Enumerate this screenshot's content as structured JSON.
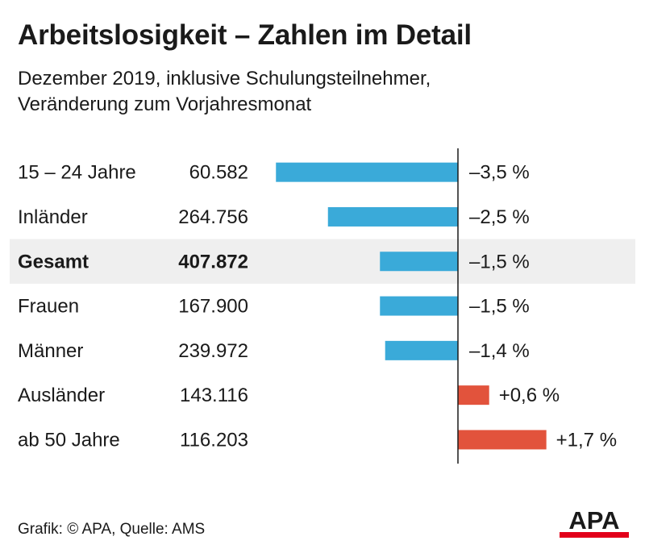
{
  "title": "Arbeitslosigkeit – Zahlen im Detail",
  "subtitle": [
    "Dezember 2019, inklusive Schulungsteilnehmer,",
    "Veränderung zum Vorjahresmonat"
  ],
  "footer": "Grafik: © APA, Quelle: AMS",
  "logo": "APA",
  "colors": {
    "negative": "#3aaad9",
    "positive": "#e2533c",
    "highlight_row": "#efefef",
    "axis": "#1a1a1a",
    "logo_red": "#e2001a"
  },
  "chart_data": {
    "type": "bar",
    "orientation": "horizontal",
    "unit": "%",
    "highlight_category": "Gesamt",
    "categories": [
      "15 – 24 Jahre",
      "Inländer",
      "Gesamt",
      "Frauen",
      "Männer",
      "Ausländer",
      "ab 50 Jahre"
    ],
    "counts": [
      "60.582",
      "264.756",
      "407.872",
      "167.900",
      "239.972",
      "143.116",
      "116.203"
    ],
    "values": [
      -3.5,
      -2.5,
      -1.5,
      -1.5,
      -1.4,
      0.6,
      1.7
    ],
    "value_labels": [
      "–3,5 %",
      "–2,5 %",
      "–1,5 %",
      "–1,5 %",
      "–1,4 %",
      "+0,6 %",
      "+1,7 %"
    ]
  }
}
